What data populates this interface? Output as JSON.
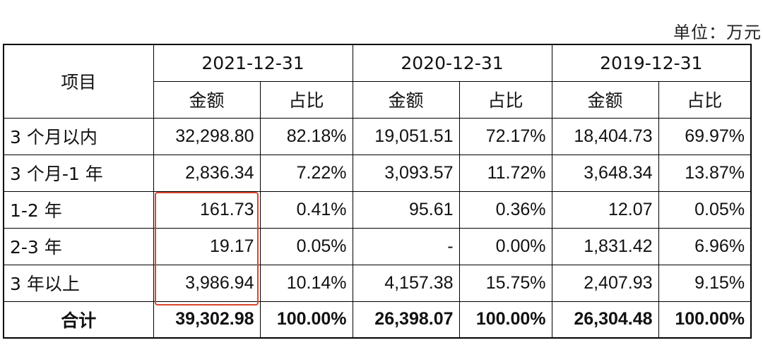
{
  "unit_label": "单位：万元",
  "header": {
    "item": "项目",
    "years": [
      "2021-12-31",
      "2020-12-31",
      "2019-12-31"
    ],
    "amount": "金额",
    "ratio": "占比"
  },
  "rows": [
    {
      "label": "3 个月以内",
      "values": [
        "32,298.80",
        "82.18%",
        "19,051.51",
        "72.17%",
        "18,404.73",
        "69.97%"
      ]
    },
    {
      "label": "3 个月-1 年",
      "values": [
        "2,836.34",
        "7.22%",
        "3,093.57",
        "11.72%",
        "3,648.34",
        "13.87%"
      ]
    },
    {
      "label": "1-2 年",
      "values": [
        "161.73",
        "0.41%",
        "95.61",
        "0.36%",
        "12.07",
        "0.05%"
      ]
    },
    {
      "label": "2-3 年",
      "values": [
        "19.17",
        "0.05%",
        "-",
        "0.00%",
        "1,831.42",
        "6.96%"
      ]
    },
    {
      "label": "3 年以上",
      "values": [
        "3,986.94",
        "10.14%",
        "4,157.38",
        "15.75%",
        "2,407.93",
        "9.15%"
      ]
    }
  ],
  "total": {
    "label": "合计",
    "values": [
      "39,302.98",
      "100.00%",
      "26,398.07",
      "100.00%",
      "26,304.48",
      "100.00%"
    ]
  },
  "highlight_color": "#d9452e"
}
